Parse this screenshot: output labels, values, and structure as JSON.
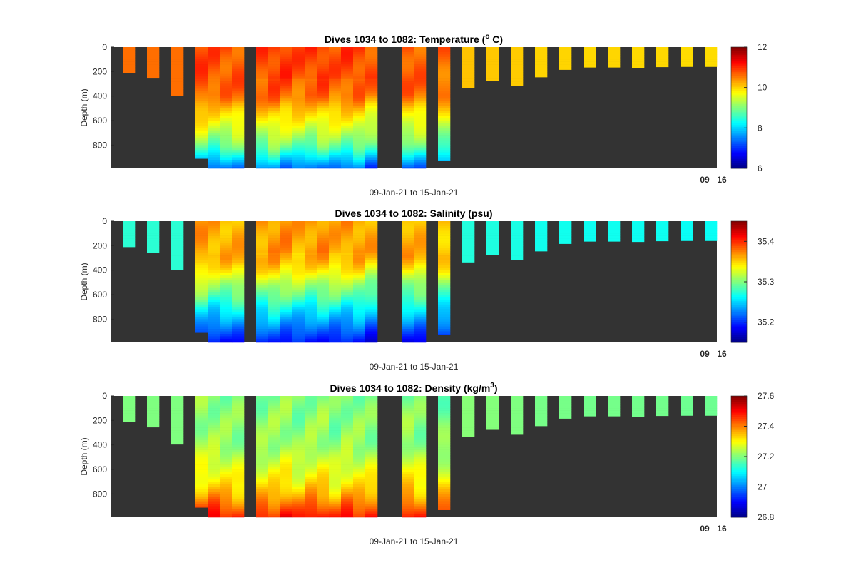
{
  "chart_data": [
    {
      "type": "heatmap",
      "title": "Dives 1034 to 1082: Temperature (",
      "title_sup": "o",
      "title_end": " C)",
      "xlabel": "09-Jan-21 to 15-Jan-21",
      "ylabel": "Depth (m)",
      "yticks": [
        "0",
        "200",
        "400",
        "600",
        "800"
      ],
      "xtick_overlap": [
        "09",
        "16"
      ],
      "clim": [
        6,
        12
      ],
      "cbar_ticks": [
        "6",
        "8",
        "10",
        "12"
      ],
      "cbar_values": [
        6,
        8,
        10,
        12
      ],
      "colormap": "jet",
      "profile_depths": [
        0,
        300,
        400,
        500,
        600,
        700,
        800,
        900,
        1000
      ],
      "profile_values": [
        10.75,
        10.7,
        10.55,
        10.05,
        9.7,
        9.3,
        8.8,
        8.0,
        7.2
      ],
      "shallow_value": 10.05
    },
    {
      "type": "heatmap",
      "title": "Dives 1034 to 1082: Salinity (psu)",
      "xlabel": "09-Jan-21 to 15-Jan-21",
      "ylabel": "Depth (m)",
      "yticks": [
        "0",
        "200",
        "400",
        "600",
        "800"
      ],
      "xtick_overlap": [
        "09",
        "16"
      ],
      "clim": [
        35.15,
        35.45
      ],
      "cbar_ticks": [
        "35.2",
        "35.3",
        "35.4"
      ],
      "cbar_values": [
        35.2,
        35.3,
        35.4
      ],
      "colormap": "jet",
      "profile_depths": [
        0,
        300,
        400,
        500,
        600,
        700,
        800,
        900,
        1000
      ],
      "profile_values": [
        35.36,
        35.36,
        35.34,
        35.31,
        35.29,
        35.26,
        35.235,
        35.21,
        35.185
      ],
      "shallow_value": 35.27
    },
    {
      "type": "heatmap",
      "title": "Dives 1034 to 1082: Density (kg/m",
      "title_sup": "3",
      "title_end": ")",
      "xlabel": "09-Jan-21 to 15-Jan-21",
      "ylabel": "Depth (m)",
      "yticks": [
        "0",
        "200",
        "400",
        "600",
        "800"
      ],
      "xtick_overlap": [
        "09",
        "16"
      ],
      "clim": [
        26.8,
        27.6
      ],
      "cbar_ticks": [
        "26.8",
        "27",
        "27.2",
        "27.4",
        "27.6"
      ],
      "cbar_values": [
        26.8,
        27.0,
        27.2,
        27.4,
        27.6
      ],
      "colormap": "jet",
      "profile_depths": [
        0,
        300,
        400,
        500,
        600,
        700,
        800,
        900,
        1000
      ],
      "profile_values": [
        27.2,
        27.21,
        27.22,
        27.25,
        27.28,
        27.31,
        27.36,
        27.43,
        27.5
      ],
      "shallow_value": 27.2
    }
  ],
  "dives": {
    "slots": 50,
    "ylim_m": [
      0,
      990
    ],
    "max_depth_by_slot": [
      0,
      210,
      0,
      255,
      0,
      395,
      0,
      910,
      990,
      990,
      990,
      0,
      990,
      990,
      990,
      990,
      990,
      990,
      990,
      990,
      990,
      990,
      0,
      0,
      990,
      990,
      0,
      930,
      0,
      335,
      0,
      275,
      0,
      315,
      0,
      245,
      0,
      184,
      0,
      165,
      0,
      165,
      0,
      168,
      0,
      162,
      0,
      160,
      0,
      160
    ],
    "surface_offset_by_slot": [
      0,
      0,
      0,
      0,
      0,
      0,
      0,
      0.1,
      0.05,
      0.02,
      0,
      0,
      0,
      0.08,
      0.1,
      -0.05,
      0.05,
      0.1,
      -0.08,
      0.04,
      0.02,
      -0.06,
      0,
      0,
      0.05,
      -0.05,
      0,
      -0.1,
      0,
      0.1,
      0,
      0.05,
      0,
      0,
      0,
      -0.1,
      0,
      -0.1,
      0,
      -0.15,
      0,
      -0.12,
      0,
      -0.15,
      0,
      -0.15,
      0,
      -0.2,
      0,
      -0.2
    ]
  }
}
